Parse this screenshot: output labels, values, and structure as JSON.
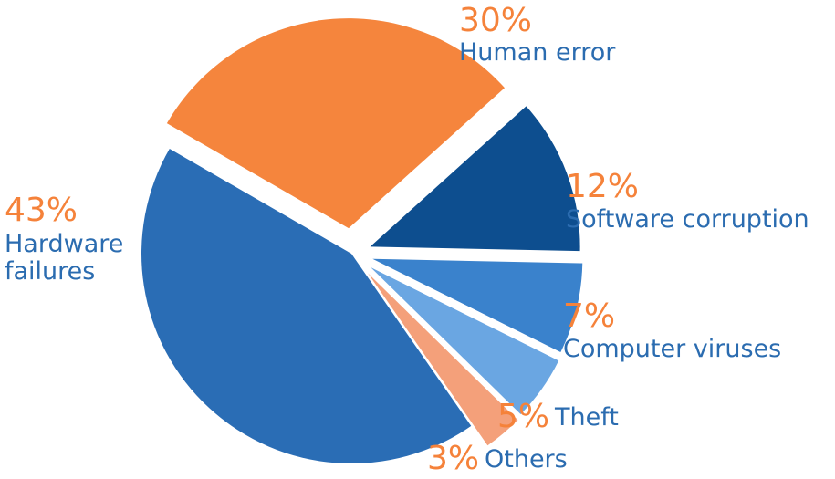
{
  "chart_data": {
    "type": "pie",
    "title": "",
    "slices": [
      {
        "label": "Hardware failures",
        "label_lines": [
          "Hardware",
          "failures"
        ],
        "value": 43,
        "display": "43%",
        "color": "#2a6db5"
      },
      {
        "label": "Human error",
        "label_lines": [
          "Human error"
        ],
        "value": 30,
        "display": "30%",
        "color": "#f5853d"
      },
      {
        "label": "Software corruption",
        "label_lines": [
          "Software corruption"
        ],
        "value": 12,
        "display": "12%",
        "color": "#0d4e8f"
      },
      {
        "label": "Computer viruses",
        "label_lines": [
          "Computer viruses"
        ],
        "value": 7,
        "display": "7%",
        "color": "#3a82cc"
      },
      {
        "label": "Theft",
        "label_lines": [
          "Theft"
        ],
        "value": 5,
        "display": "5%",
        "color": "#6aa6e2"
      },
      {
        "label": "Others",
        "label_lines": [
          "Others"
        ],
        "value": 3,
        "display": "3%",
        "color": "#f4a07a"
      }
    ],
    "legend": "none"
  }
}
